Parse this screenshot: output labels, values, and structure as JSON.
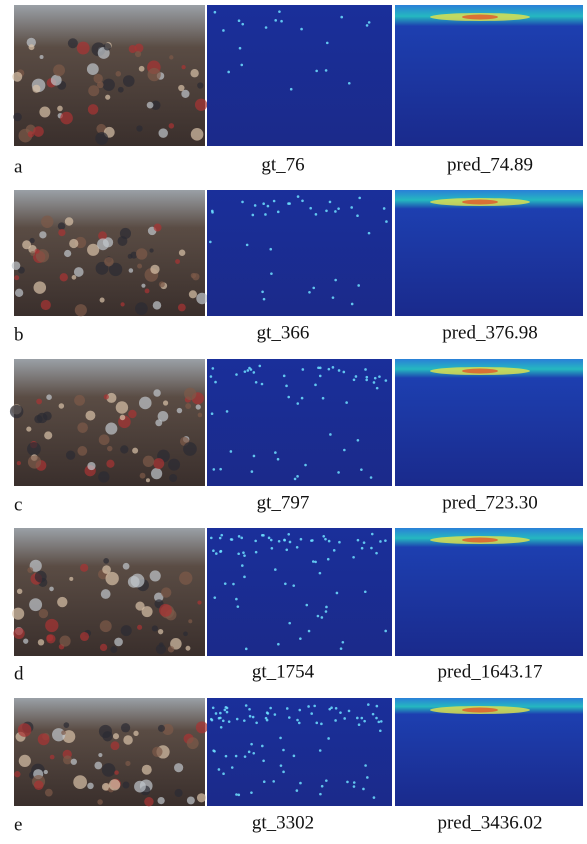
{
  "figure": {
    "rows": [
      {
        "label": "a",
        "gt": "gt_76",
        "pred": "pred_74.89"
      },
      {
        "label": "b",
        "gt": "gt_366",
        "pred": "pred_376.98"
      },
      {
        "label": "c",
        "gt": "gt_797",
        "pred": "pred_723.30"
      },
      {
        "label": "d",
        "gt": "gt_1754",
        "pred": "pred_1643.17"
      },
      {
        "label": "e",
        "gt": "gt_3302",
        "pred": "pred_3436.02"
      }
    ]
  }
}
